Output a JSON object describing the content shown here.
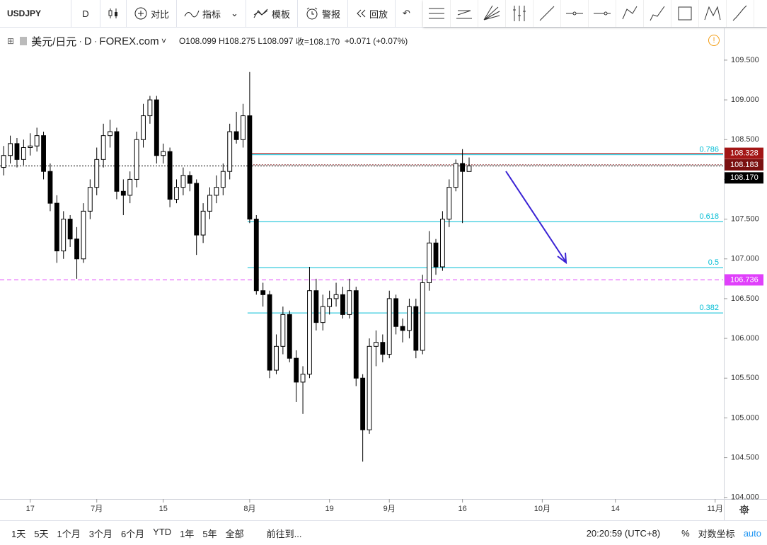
{
  "toolbar": {
    "symbol": "USDJPY",
    "interval": "D",
    "compare": "对比",
    "indicators": "指标",
    "templates": "模板",
    "alerts": "警报",
    "replay": "回放"
  },
  "header": {
    "name": "美元/日元",
    "interval": "D",
    "source": "FOREX.com",
    "open": "O108.099",
    "high": "H108.275",
    "low": "L108.097",
    "close": "收=108.170",
    "change": "+0.071 (+0.07%)"
  },
  "chart_data": {
    "type": "candlestick",
    "up_color": "#ffffff",
    "down_color": "#000000",
    "wick_color": "#000000",
    "open": [
      108.15,
      108.3,
      108.45,
      108.25,
      108.4,
      108.42,
      108.55,
      108.1,
      107.7,
      107.1,
      107.5,
      107.25,
      107.0,
      107.6,
      107.9,
      108.25,
      108.55,
      108.6,
      107.85,
      107.8,
      108.0,
      108.5,
      108.8,
      109.0,
      108.3,
      108.35,
      107.75,
      107.9,
      108.05,
      107.95,
      107.3,
      107.6,
      107.8,
      107.9,
      108.1,
      108.6,
      108.5,
      108.8,
      107.5,
      106.6,
      106.55,
      105.6,
      105.9,
      106.3,
      105.75,
      105.45,
      105.55,
      106.6,
      106.2,
      106.4,
      106.5,
      106.55,
      106.3,
      106.6,
      105.5,
      104.85,
      105.9,
      105.95,
      105.8,
      106.5,
      106.15,
      106.1,
      106.4,
      105.85,
      106.7,
      107.2,
      106.9,
      107.5,
      107.9,
      108.2,
      108.099
    ],
    "high": [
      108.42,
      108.55,
      108.52,
      108.5,
      108.58,
      108.65,
      108.6,
      108.2,
      107.8,
      107.6,
      107.55,
      107.4,
      107.7,
      108.0,
      108.4,
      108.7,
      108.75,
      108.65,
      108.0,
      108.1,
      108.6,
      108.95,
      109.05,
      109.05,
      108.45,
      108.4,
      108.0,
      108.15,
      108.1,
      108.0,
      107.7,
      107.9,
      108.05,
      108.2,
      108.7,
      108.85,
      108.95,
      109.35,
      107.55,
      106.7,
      106.6,
      106.05,
      106.4,
      106.35,
      105.85,
      105.65,
      106.9,
      106.75,
      106.55,
      106.6,
      106.7,
      106.65,
      106.75,
      106.65,
      105.55,
      106.0,
      106.1,
      106.05,
      106.6,
      106.55,
      106.25,
      106.5,
      106.5,
      106.8,
      107.35,
      107.25,
      107.6,
      108.0,
      108.25,
      108.38,
      108.275
    ],
    "low": [
      108.05,
      108.2,
      108.15,
      108.18,
      108.3,
      108.35,
      108.0,
      107.6,
      106.95,
      107.0,
      107.15,
      106.75,
      106.95,
      107.5,
      107.8,
      108.15,
      108.4,
      107.75,
      107.55,
      107.7,
      107.9,
      108.4,
      108.7,
      108.2,
      108.2,
      107.65,
      107.7,
      107.8,
      107.85,
      107.05,
      107.2,
      107.5,
      107.7,
      107.8,
      108.0,
      108.45,
      108.4,
      107.45,
      106.55,
      106.4,
      105.5,
      105.55,
      105.8,
      105.7,
      105.2,
      105.05,
      105.5,
      106.1,
      106.1,
      106.3,
      106.4,
      106.25,
      106.25,
      105.4,
      104.45,
      104.8,
      105.65,
      105.7,
      105.75,
      106.05,
      105.95,
      106.0,
      105.75,
      105.8,
      106.6,
      106.8,
      106.85,
      107.4,
      107.85,
      107.45,
      108.097
    ],
    "close": [
      108.3,
      108.45,
      108.25,
      108.4,
      108.42,
      108.55,
      108.1,
      107.7,
      107.1,
      107.5,
      107.25,
      107.0,
      107.6,
      107.9,
      108.25,
      108.55,
      108.6,
      107.85,
      107.8,
      108.0,
      108.5,
      108.8,
      109.0,
      108.3,
      108.35,
      107.75,
      107.9,
      108.05,
      107.95,
      107.3,
      107.6,
      107.8,
      107.9,
      108.1,
      108.6,
      108.5,
      108.8,
      107.5,
      106.6,
      106.55,
      105.6,
      105.9,
      106.3,
      105.75,
      105.45,
      105.55,
      106.6,
      106.2,
      106.4,
      106.5,
      106.55,
      106.3,
      106.6,
      105.5,
      104.85,
      105.9,
      105.95,
      105.8,
      106.5,
      106.15,
      106.1,
      106.4,
      105.85,
      106.7,
      107.2,
      106.9,
      107.5,
      107.9,
      108.2,
      108.1,
      108.17
    ],
    "xlim": [
      -0.55,
      108.2
    ],
    "xticks": [
      {
        "value": 4,
        "label": "17"
      },
      {
        "value": 14,
        "label": "7月"
      },
      {
        "value": 24,
        "label": "15"
      },
      {
        "value": 37,
        "label": "8月"
      },
      {
        "value": 49,
        "label": "19"
      },
      {
        "value": 58,
        "label": "9月"
      },
      {
        "value": 69,
        "label": "16"
      },
      {
        "value": 81,
        "label": "10月"
      },
      {
        "value": 92,
        "label": "14"
      },
      {
        "value": 107,
        "label": "11月"
      }
    ],
    "ylim": [
      103.98,
      109.9
    ],
    "yticks": [
      {
        "value": 104,
        "label": "104.000"
      },
      {
        "value": 104.5,
        "label": "104.500"
      },
      {
        "value": 105,
        "label": "105.000"
      },
      {
        "value": 105.5,
        "label": "105.500"
      },
      {
        "value": 106,
        "label": "106.000"
      },
      {
        "value": 106.5,
        "label": "106.500"
      },
      {
        "value": 107,
        "label": "107.000"
      },
      {
        "value": 107.5,
        "label": "107.500"
      },
      {
        "value": 108,
        "label": "108.000"
      },
      {
        "value": 108.5,
        "label": "108.500"
      },
      {
        "value": 109,
        "label": "109.000"
      },
      {
        "value": 109.5,
        "label": "109.500"
      }
    ],
    "fib_levels": [
      {
        "label": "0.786",
        "value": 108.31,
        "start": 37
      },
      {
        "label": "0.618",
        "value": 107.47,
        "start": 37
      },
      {
        "label": "0.5",
        "value": 106.89,
        "start": 37
      },
      {
        "label": "0.382",
        "value": 106.32,
        "start": 37
      }
    ],
    "fib_color": "#00bcd4",
    "price_lines": [
      {
        "value": 108.328,
        "color": "#a31515",
        "style": "solid",
        "start": 37
      },
      {
        "value": 108.183,
        "color": "#7a1010",
        "style": "dotted",
        "start": 37
      },
      {
        "value": {
          "value": 108.17,
          "label": "108.170"
        },
        "color": "#000000",
        "style": "dotted"
      },
      {
        "value": 106.736,
        "color": "#e040fb",
        "style": "dashed"
      }
    ]
  },
  "bottom_bar": {
    "ranges": [
      "1天",
      "5天",
      "1个月",
      "3个月",
      "6个月",
      "YTD",
      "1年",
      "5年",
      "全部"
    ],
    "goto": "前往到...",
    "time": "20:20:59 (UTC+8)",
    "percent": "%",
    "log": "对数坐标",
    "auto": "auto"
  }
}
